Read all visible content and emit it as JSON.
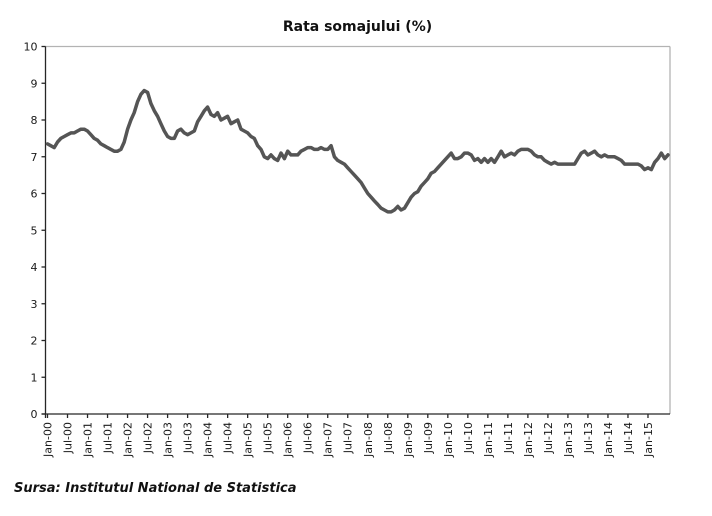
{
  "chart_data": {
    "type": "line",
    "title": "Rata somajului (%)",
    "xlabel": "",
    "ylabel": "",
    "ylim": [
      0,
      10
    ],
    "y_ticks": [
      0,
      1,
      2,
      3,
      4,
      5,
      6,
      7,
      8,
      9,
      10
    ],
    "grid": "off",
    "legend": "none",
    "x_unit": "month",
    "x_start": "Jan-00",
    "x_end": "Jul-15",
    "months_per_tick": 6,
    "x_tick_labels": [
      "Jan-00",
      "Jul-00",
      "Jan-01",
      "Jul-01",
      "Jan-02",
      "Jul-02",
      "Jan-03",
      "Jul-03",
      "Jan-04",
      "Jul-04",
      "Jan-05",
      "Jul-05",
      "Jan-06",
      "Jul-06",
      "Jan-07",
      "Jul-07",
      "Jan-08",
      "Jul-08",
      "Jan-09",
      "Jul-09",
      "Jan-10",
      "Jul-10",
      "Jan-11",
      "Jul-11",
      "Jan-12",
      "Jul-12",
      "Jan-13",
      "Jul-13",
      "Jan-14",
      "Jul-14",
      "Jan-15"
    ],
    "series": [
      {
        "name": "Rata somajului (%)",
        "values": [
          7.35,
          7.3,
          7.25,
          7.4,
          7.5,
          7.55,
          7.6,
          7.65,
          7.65,
          7.7,
          7.75,
          7.75,
          7.7,
          7.6,
          7.5,
          7.45,
          7.35,
          7.3,
          7.25,
          7.2,
          7.15,
          7.15,
          7.2,
          7.4,
          7.75,
          8.0,
          8.2,
          8.5,
          8.7,
          8.8,
          8.75,
          8.45,
          8.25,
          8.1,
          7.9,
          7.7,
          7.55,
          7.5,
          7.5,
          7.7,
          7.75,
          7.65,
          7.6,
          7.65,
          7.7,
          7.95,
          8.1,
          8.25,
          8.35,
          8.15,
          8.1,
          8.2,
          8.0,
          8.05,
          8.1,
          7.9,
          7.95,
          8.0,
          7.75,
          7.7,
          7.65,
          7.55,
          7.5,
          7.3,
          7.2,
          7.0,
          6.95,
          7.05,
          6.95,
          6.9,
          7.1,
          6.95,
          7.15,
          7.05,
          7.05,
          7.05,
          7.15,
          7.2,
          7.25,
          7.25,
          7.2,
          7.2,
          7.25,
          7.2,
          7.2,
          7.3,
          7.0,
          6.9,
          6.85,
          6.8,
          6.7,
          6.6,
          6.5,
          6.4,
          6.3,
          6.15,
          6.0,
          5.9,
          5.8,
          5.7,
          5.6,
          5.55,
          5.5,
          5.5,
          5.55,
          5.65,
          5.55,
          5.6,
          5.75,
          5.9,
          6.0,
          6.05,
          6.2,
          6.3,
          6.4,
          6.55,
          6.6,
          6.7,
          6.8,
          6.9,
          7.0,
          7.1,
          6.95,
          6.95,
          7.0,
          7.1,
          7.1,
          7.05,
          6.9,
          6.95,
          6.85,
          6.95,
          6.85,
          6.95,
          6.85,
          7.0,
          7.15,
          7.0,
          7.05,
          7.1,
          7.05,
          7.15,
          7.2,
          7.2,
          7.2,
          7.15,
          7.05,
          7.0,
          7.0,
          6.9,
          6.85,
          6.8,
          6.85,
          6.8,
          6.8,
          6.8,
          6.8,
          6.8,
          6.8,
          6.95,
          7.1,
          7.15,
          7.05,
          7.1,
          7.15,
          7.05,
          7.0,
          7.05,
          7.0,
          7.0,
          7.0,
          6.95,
          6.9,
          6.8,
          6.8,
          6.8,
          6.8,
          6.8,
          6.75,
          6.65,
          6.7,
          6.65,
          6.85,
          6.95,
          7.1,
          6.95,
          7.05
        ]
      }
    ],
    "line_color": "#555555",
    "axis_color": "#262626",
    "border_color": "#b3b3b3"
  },
  "source": {
    "text": "Sursa: Institutul National de Statistica"
  }
}
